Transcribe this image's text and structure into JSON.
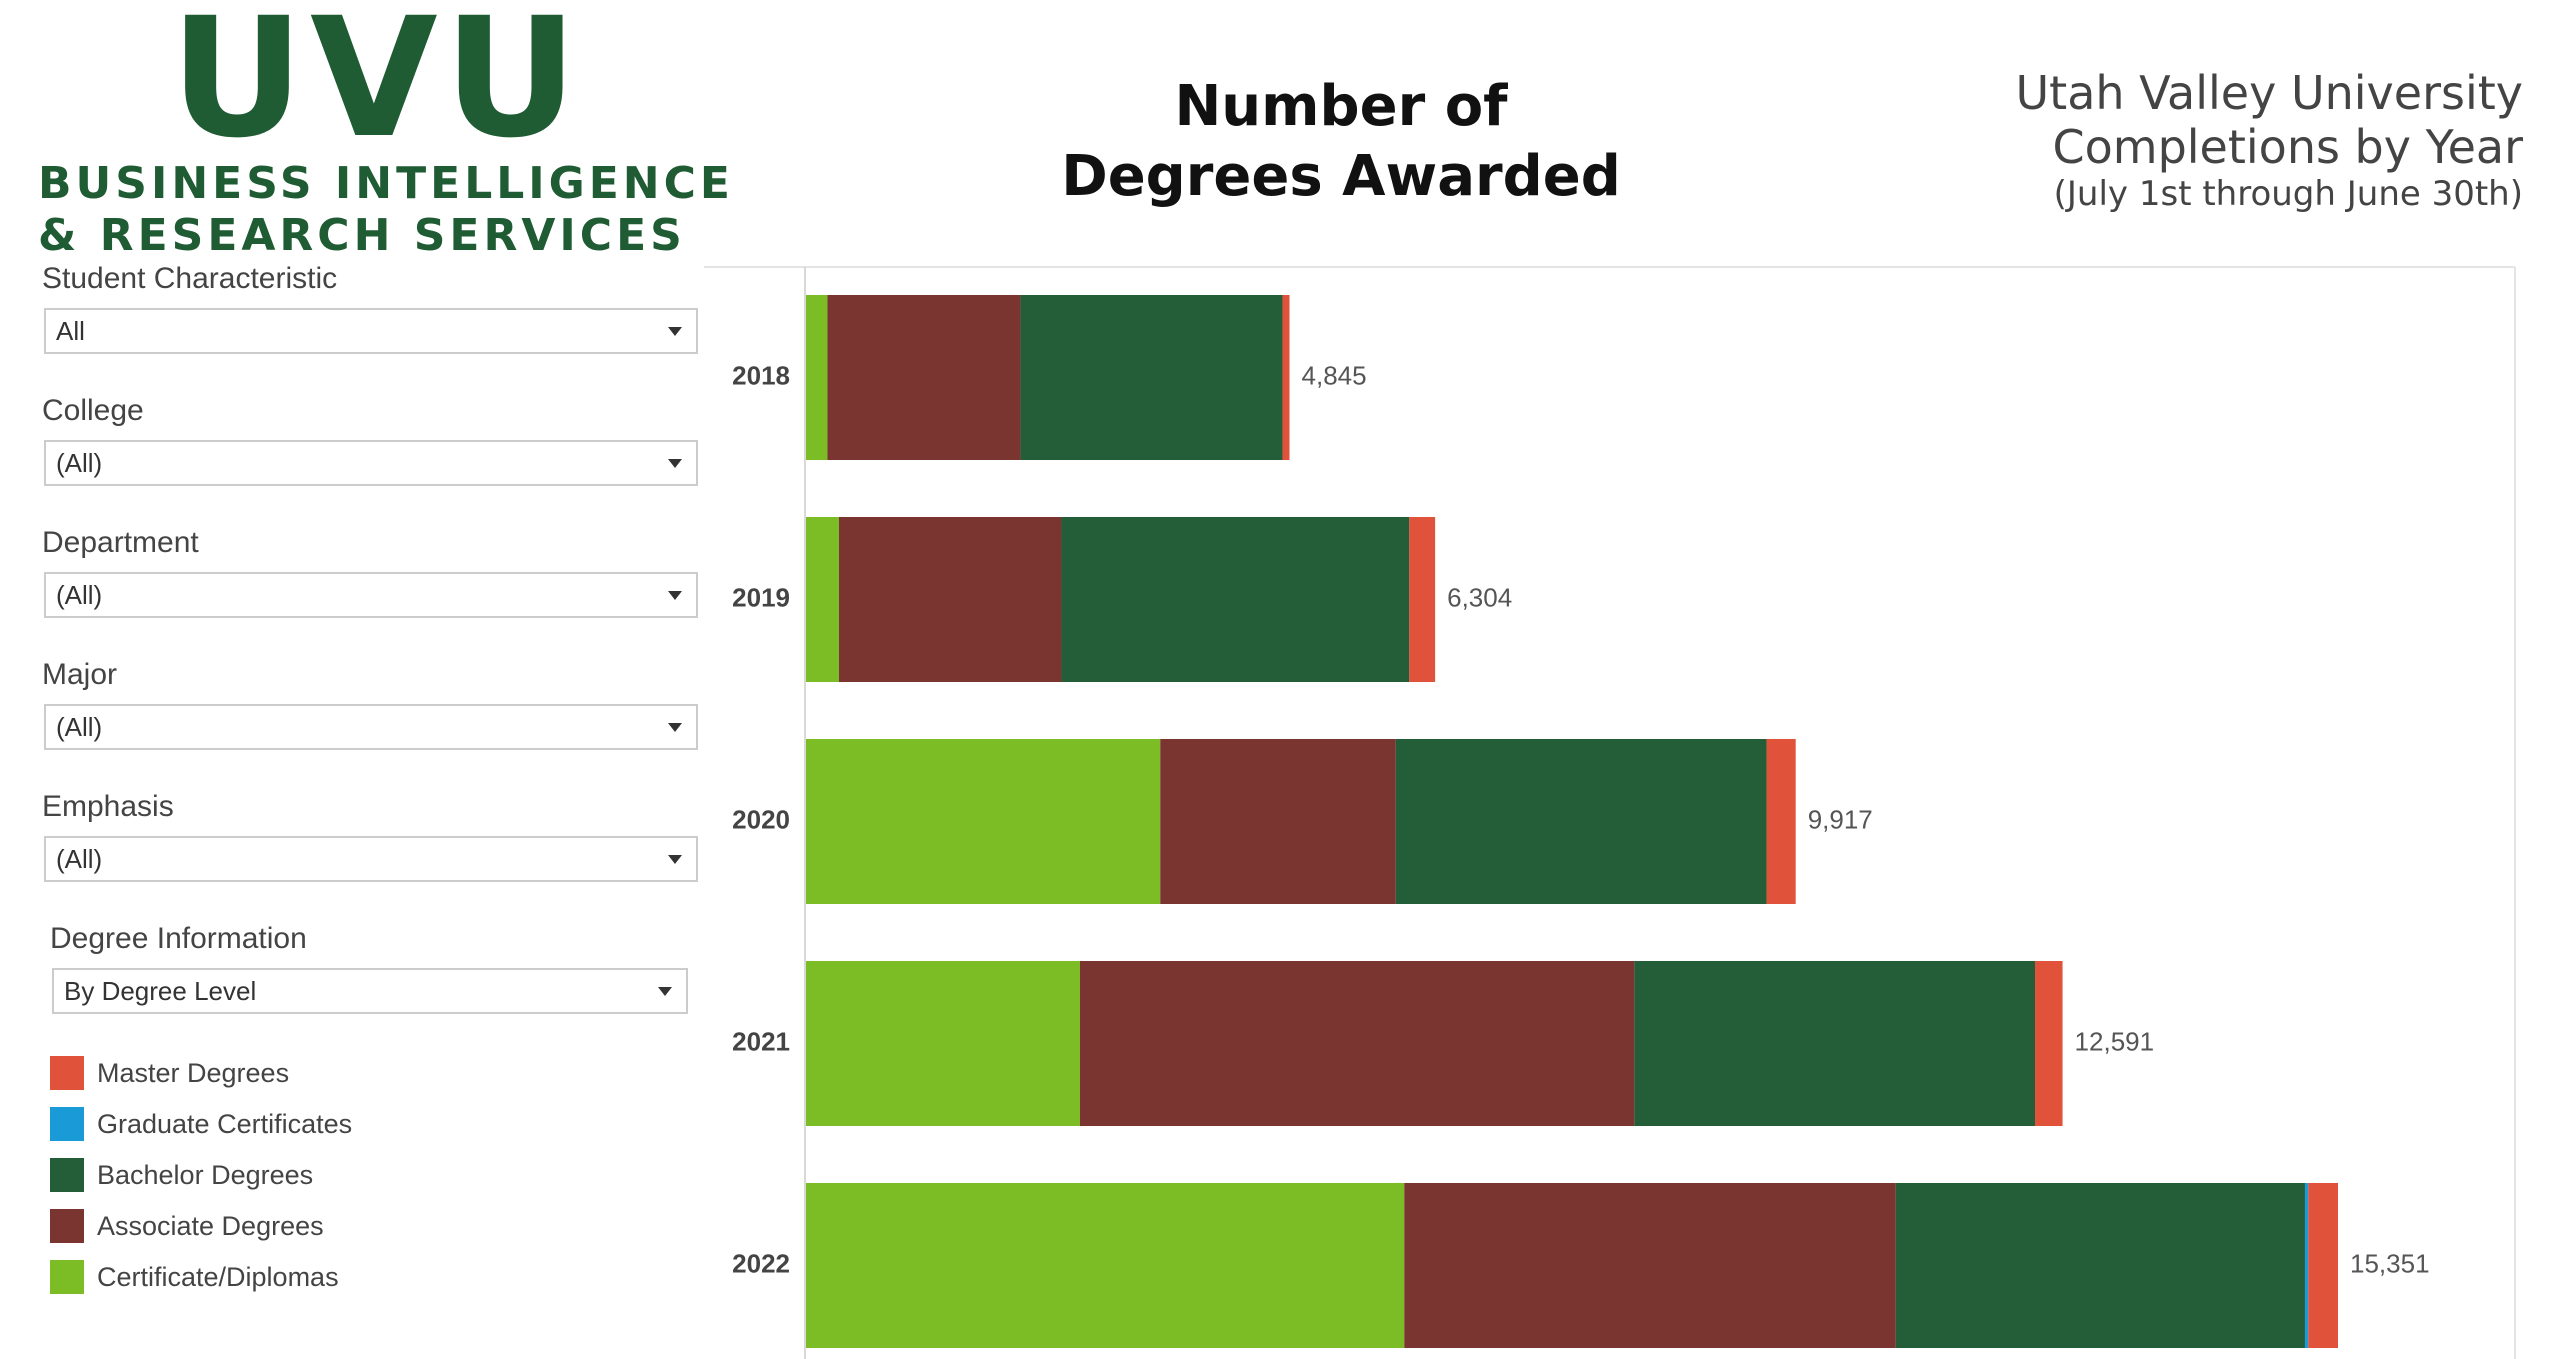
{
  "header": {
    "logo": "UVU",
    "org_line1": "BUSINESS INTELLIGENCE",
    "org_line2": "& RESEARCH SERVICES",
    "subtitle_line1": "Utah Valley University",
    "subtitle_line2": "Completions by Year",
    "subtitle_note": "(July 1st through June 30th)"
  },
  "filters": [
    {
      "label": "Student Characteristic",
      "value": "All"
    },
    {
      "label": "College",
      "value": "(All)"
    },
    {
      "label": "Department",
      "value": "(All)"
    },
    {
      "label": "Major",
      "value": "(All)"
    },
    {
      "label": "Emphasis",
      "value": "(All)"
    },
    {
      "label": "Degree Information",
      "value": "By Degree Level"
    }
  ],
  "chart_data": {
    "type": "bar",
    "orientation": "horizontal",
    "stacked": true,
    "title": "Number of Degrees Awarded",
    "categories": [
      "2018",
      "2019",
      "2020",
      "2021",
      "2022"
    ],
    "series": [
      {
        "name": "Master Degrees",
        "color": "#e0533a",
        "values": [
          70,
          259,
          292,
          276,
          298
        ]
      },
      {
        "name": "Graduate Certificates",
        "color": "#1a9ad6",
        "values": [
          0,
          0,
          0,
          0,
          33
        ]
      },
      {
        "name": "Bachelor Degrees",
        "color": "#235e39",
        "values": [
          2625,
          3485,
          3715,
          4015,
          4100
        ]
      },
      {
        "name": "Associate Degrees",
        "color": "#7b3531",
        "values": [
          1935,
          2230,
          2360,
          5555,
          4925
        ]
      },
      {
        "name": "Certificate/Diplomas",
        "color": "#7cbd25",
        "values": [
          215,
          330,
          3550,
          2745,
          5995
        ]
      }
    ],
    "totals": [
      4845,
      6304,
      9917,
      12591,
      15351
    ],
    "total_labels": [
      "4,845",
      "6,304",
      "9,917",
      "12,591",
      "15,351"
    ]
  }
}
